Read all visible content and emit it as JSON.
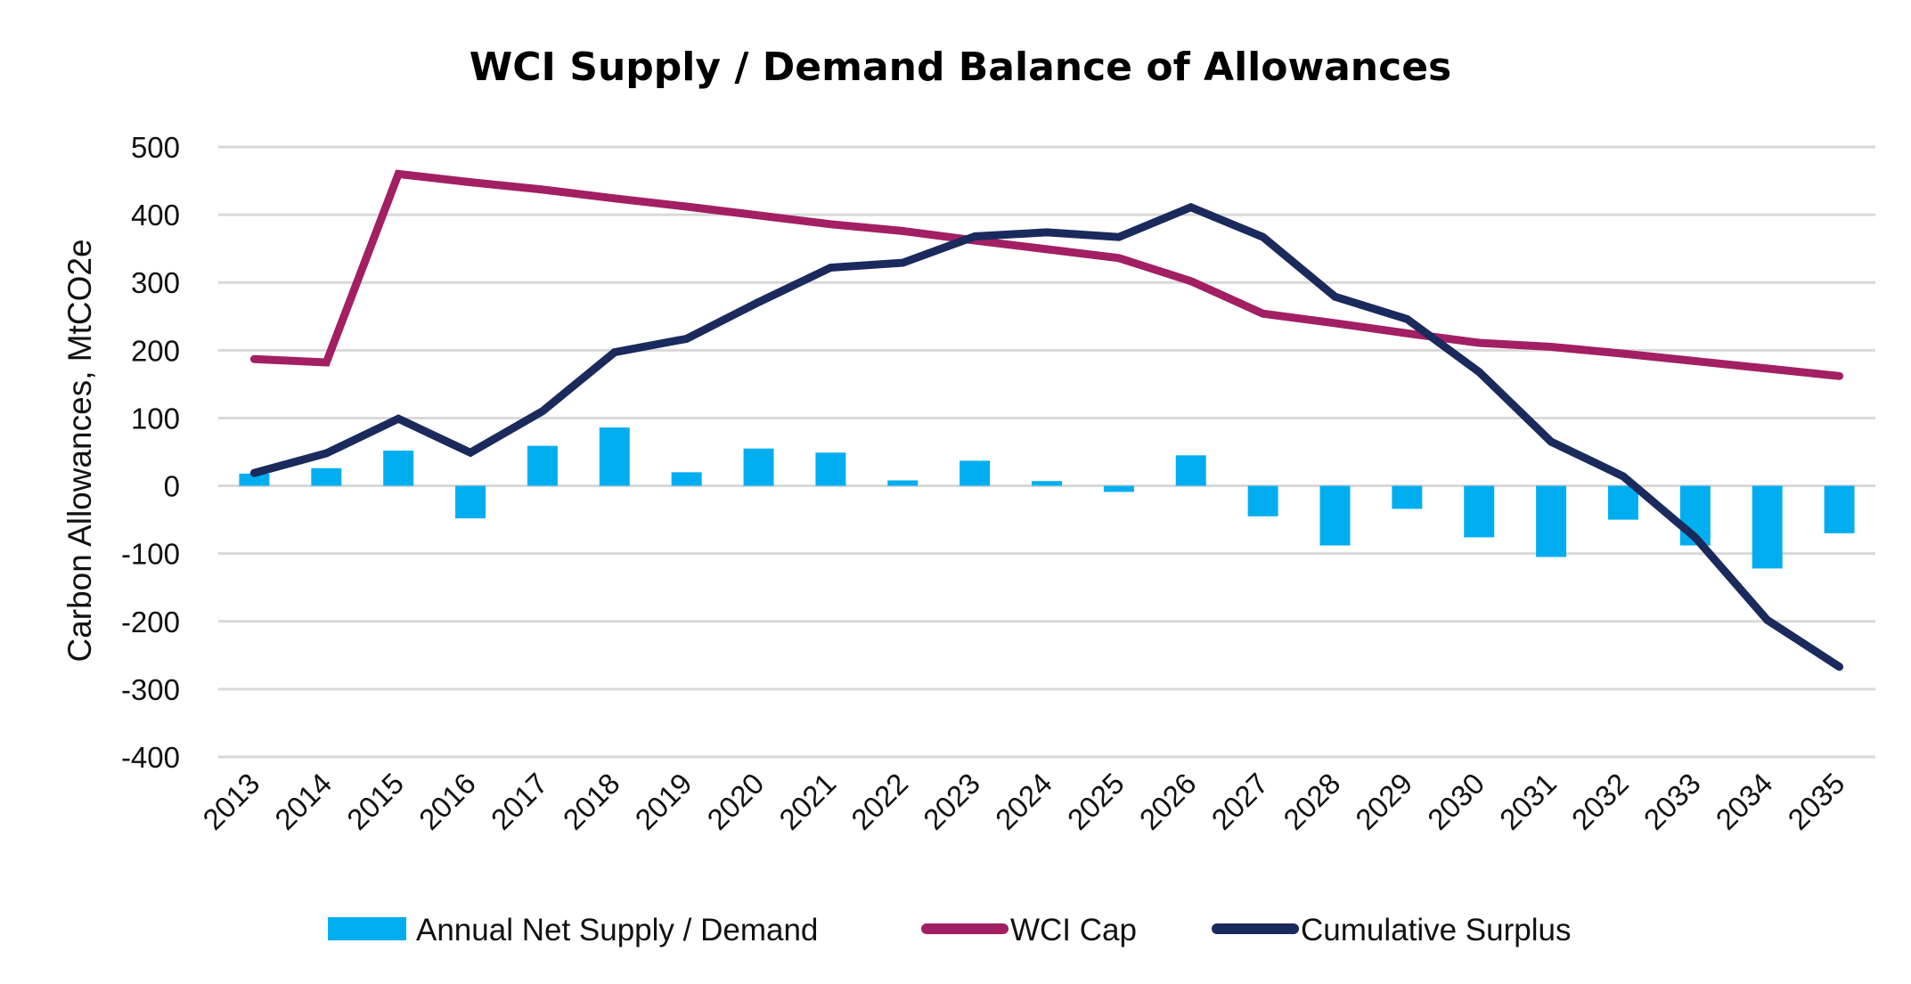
{
  "chart_data": {
    "type": "bar+line",
    "title": "WCI Supply / Demand Balance of Allowances",
    "xlabel": "",
    "ylabel": "Carbon Allowances, MtCO2e",
    "ylim": [
      -400,
      500
    ],
    "yticks": [
      500,
      400,
      300,
      200,
      100,
      0,
      -100,
      -200,
      -300,
      -400
    ],
    "grid": true,
    "legend_position": "bottom",
    "categories": [
      "2013",
      "2014",
      "2015",
      "2016",
      "2017",
      "2018",
      "2019",
      "2020",
      "2021",
      "2022",
      "2023",
      "2024",
      "2025",
      "2026",
      "2027",
      "2028",
      "2029",
      "2030",
      "2031",
      "2032",
      "2033",
      "2034",
      "2035"
    ],
    "series": [
      {
        "name": "Annual Net Supply / Demand",
        "type": "bar",
        "color": "#00aeef",
        "values": [
          18,
          26,
          52,
          -48,
          59,
          86,
          20,
          55,
          49,
          8,
          37,
          7,
          -9,
          45,
          -45,
          -88,
          -34,
          -76,
          -105,
          -50,
          -88,
          -122,
          -70
        ]
      },
      {
        "name": "WCI Cap",
        "type": "line",
        "color": "#a21f63",
        "values": [
          187,
          182,
          460,
          448,
          437,
          424,
          412,
          399,
          386,
          376,
          362,
          349,
          336,
          302,
          254,
          240,
          225,
          211,
          205,
          195,
          184,
          173,
          162
        ]
      },
      {
        "name": "Cumulative Surplus",
        "type": "line",
        "color": "#1b2a5c",
        "values": [
          19,
          48,
          99,
          49,
          110,
          197,
          217,
          271,
          322,
          329,
          368,
          374,
          367,
          411,
          367,
          279,
          246,
          168,
          65,
          14,
          -76,
          -198,
          -267
        ]
      }
    ]
  }
}
